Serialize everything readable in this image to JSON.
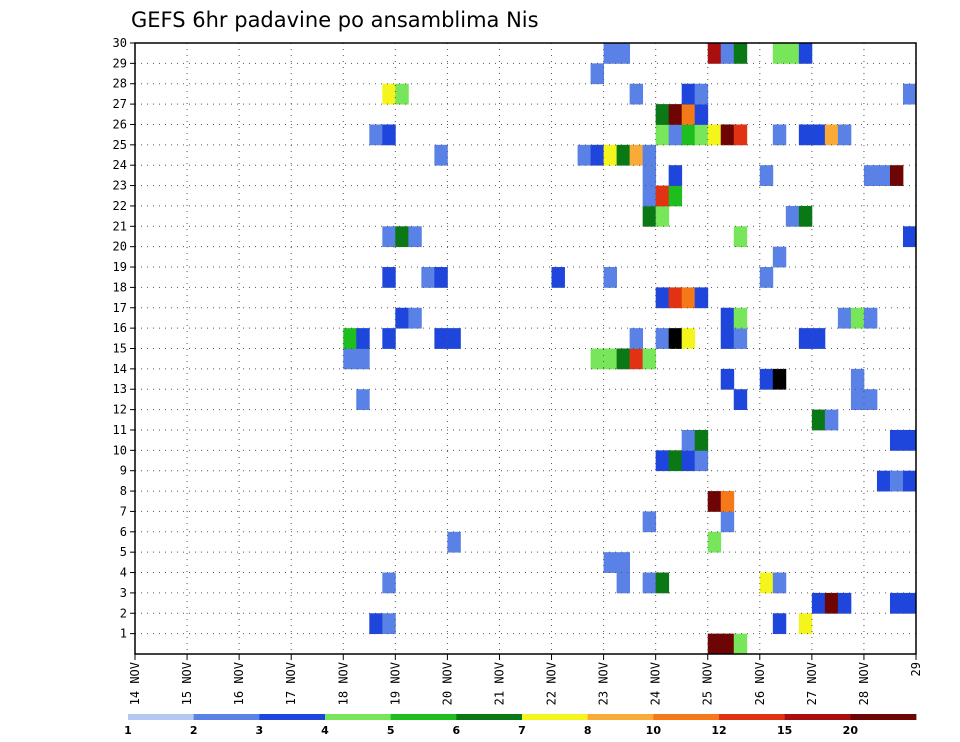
{
  "chart_data": {
    "type": "heatmap",
    "title": "GEFS 6hr padavine po ansamblima Nis",
    "xlabel": "",
    "ylabel": "",
    "x_ticks": [
      "14 NOV",
      "15 NOV",
      "16 NOV",
      "17 NOV",
      "18 NOV",
      "19 NOV",
      "20 NOV",
      "21 NOV",
      "22 NOV",
      "23 NOV",
      "24 NOV",
      "25 NOV",
      "26 NOV",
      "27 NOV",
      "28 NOV",
      "29"
    ],
    "y_ticks": [
      "1",
      "2",
      "3",
      "4",
      "5",
      "6",
      "7",
      "8",
      "9",
      "10",
      "11",
      "12",
      "13",
      "14",
      "15",
      "16",
      "17",
      "18",
      "19",
      "20",
      "21",
      "22",
      "23",
      "24",
      "25",
      "26",
      "27",
      "28",
      "29",
      "30"
    ],
    "x_range_days": [
      14,
      29
    ],
    "y_range": [
      0,
      30
    ],
    "grid": "dotted",
    "legend": {
      "placement": "bottom",
      "labels": [
        "1",
        "2",
        "3",
        "4",
        "5",
        "6",
        "7",
        "8",
        "10",
        "12",
        "15",
        "20"
      ],
      "colors": [
        "#b4c8f0",
        "#5a82e6",
        "#1e46dc",
        "#78e65a",
        "#1ebe1e",
        "#0a7814",
        "#f5f51e",
        "#faaa37",
        "#f57819",
        "#e13214",
        "#aa0f0f",
        "#6e0505"
      ]
    },
    "cell_hours": 6,
    "cells": [
      [
        25.0,
        0,
        11
      ],
      [
        25.25,
        0,
        11
      ],
      [
        25.5,
        0,
        3
      ],
      [
        18.5,
        1,
        2
      ],
      [
        18.75,
        1,
        1
      ],
      [
        26.25,
        1,
        2
      ],
      [
        26.75,
        1,
        6
      ],
      [
        27.0,
        2,
        2
      ],
      [
        27.25,
        2,
        11
      ],
      [
        27.5,
        2,
        2
      ],
      [
        28.5,
        2,
        2
      ],
      [
        28.75,
        2,
        2
      ],
      [
        18.75,
        3,
        1
      ],
      [
        23.25,
        3,
        1
      ],
      [
        23.75,
        3,
        1
      ],
      [
        24.0,
        3,
        5
      ],
      [
        26.0,
        3,
        6
      ],
      [
        26.25,
        3,
        1
      ],
      [
        23.0,
        4,
        1
      ],
      [
        23.25,
        4,
        1
      ],
      [
        20.0,
        5,
        1
      ],
      [
        25.0,
        5,
        3
      ],
      [
        23.75,
        6,
        1
      ],
      [
        25.25,
        6,
        1
      ],
      [
        25.0,
        7,
        11
      ],
      [
        25.25,
        7,
        8
      ],
      [
        28.25,
        8,
        2
      ],
      [
        28.5,
        8,
        1
      ],
      [
        28.75,
        8,
        2
      ],
      [
        24.0,
        9,
        2
      ],
      [
        24.25,
        9,
        5
      ],
      [
        24.5,
        9,
        2
      ],
      [
        24.75,
        9,
        1
      ],
      [
        24.5,
        10,
        1
      ],
      [
        24.75,
        10,
        5
      ],
      [
        28.5,
        10,
        2
      ],
      [
        28.75,
        10,
        2
      ],
      [
        27.0,
        11,
        5
      ],
      [
        27.25,
        11,
        1
      ],
      [
        18.25,
        12,
        1
      ],
      [
        25.5,
        12,
        2
      ],
      [
        27.75,
        12,
        1
      ],
      [
        28.0,
        12,
        1
      ],
      [
        25.25,
        13,
        2
      ],
      [
        26.0,
        13,
        2
      ],
      [
        26.25,
        13,
        12
      ],
      [
        27.75,
        13,
        1
      ],
      [
        18.0,
        14,
        1
      ],
      [
        18.25,
        14,
        1
      ],
      [
        22.75,
        14,
        3
      ],
      [
        23.0,
        14,
        3
      ],
      [
        23.25,
        14,
        5
      ],
      [
        23.5,
        14,
        9
      ],
      [
        23.75,
        14,
        3
      ],
      [
        18.0,
        15,
        4
      ],
      [
        18.25,
        15,
        2
      ],
      [
        18.75,
        15,
        2
      ],
      [
        19.75,
        15,
        2
      ],
      [
        20.0,
        15,
        2
      ],
      [
        23.5,
        15,
        1
      ],
      [
        24.0,
        15,
        1
      ],
      [
        24.25,
        15,
        12
      ],
      [
        24.5,
        15,
        6
      ],
      [
        25.25,
        15,
        2
      ],
      [
        25.5,
        15,
        1
      ],
      [
        26.75,
        15,
        2
      ],
      [
        27.0,
        15,
        2
      ],
      [
        19.0,
        16,
        2
      ],
      [
        19.25,
        16,
        1
      ],
      [
        25.25,
        16,
        2
      ],
      [
        25.5,
        16,
        3
      ],
      [
        27.5,
        16,
        1
      ],
      [
        27.75,
        16,
        3
      ],
      [
        28.0,
        16,
        1
      ],
      [
        24.0,
        17,
        2
      ],
      [
        24.25,
        17,
        9
      ],
      [
        24.5,
        17,
        8
      ],
      [
        24.75,
        17,
        2
      ],
      [
        18.75,
        18,
        2
      ],
      [
        19.5,
        18,
        1
      ],
      [
        19.75,
        18,
        2
      ],
      [
        22.0,
        18,
        2
      ],
      [
        23.0,
        18,
        1
      ],
      [
        26.0,
        18,
        1
      ],
      [
        26.25,
        19,
        1
      ],
      [
        18.75,
        20,
        1
      ],
      [
        19.0,
        20,
        5
      ],
      [
        19.25,
        20,
        1
      ],
      [
        25.5,
        20,
        3
      ],
      [
        28.75,
        20,
        2
      ],
      [
        23.75,
        21,
        5
      ],
      [
        24.0,
        21,
        3
      ],
      [
        26.5,
        21,
        1
      ],
      [
        26.75,
        21,
        5
      ],
      [
        23.75,
        22,
        1
      ],
      [
        24.0,
        22,
        9
      ],
      [
        24.25,
        22,
        4
      ],
      [
        23.75,
        23,
        1
      ],
      [
        24.25,
        23,
        2
      ],
      [
        26.0,
        23,
        1
      ],
      [
        28.0,
        23,
        1
      ],
      [
        28.25,
        23,
        1
      ],
      [
        28.5,
        23,
        11
      ],
      [
        19.75,
        24,
        1
      ],
      [
        22.5,
        24,
        1
      ],
      [
        22.75,
        24,
        2
      ],
      [
        23.0,
        24,
        6
      ],
      [
        23.25,
        24,
        5
      ],
      [
        23.5,
        24,
        7
      ],
      [
        23.75,
        24,
        1
      ],
      [
        18.5,
        25,
        1
      ],
      [
        18.75,
        25,
        2
      ],
      [
        24.0,
        25,
        3
      ],
      [
        24.25,
        25,
        1
      ],
      [
        24.5,
        25,
        4
      ],
      [
        24.75,
        25,
        3
      ],
      [
        25.0,
        25,
        6
      ],
      [
        25.25,
        25,
        11
      ],
      [
        25.5,
        25,
        9
      ],
      [
        26.25,
        25,
        1
      ],
      [
        26.75,
        25,
        2
      ],
      [
        27.0,
        25,
        2
      ],
      [
        27.25,
        25,
        7
      ],
      [
        27.5,
        25,
        1
      ],
      [
        24.0,
        26,
        5
      ],
      [
        24.25,
        26,
        11
      ],
      [
        24.5,
        26,
        8
      ],
      [
        24.75,
        26,
        2
      ],
      [
        18.75,
        27,
        6
      ],
      [
        19.0,
        27,
        3
      ],
      [
        23.5,
        27,
        1
      ],
      [
        24.5,
        27,
        2
      ],
      [
        24.75,
        27,
        1
      ],
      [
        28.75,
        27,
        1
      ],
      [
        22.75,
        28,
        1
      ],
      [
        23.0,
        29,
        1
      ],
      [
        23.25,
        29,
        1
      ],
      [
        25.0,
        29,
        10
      ],
      [
        25.25,
        29,
        1
      ],
      [
        25.5,
        29,
        5
      ],
      [
        26.25,
        29,
        3
      ],
      [
        26.5,
        29,
        3
      ],
      [
        26.75,
        29,
        2
      ]
    ]
  }
}
